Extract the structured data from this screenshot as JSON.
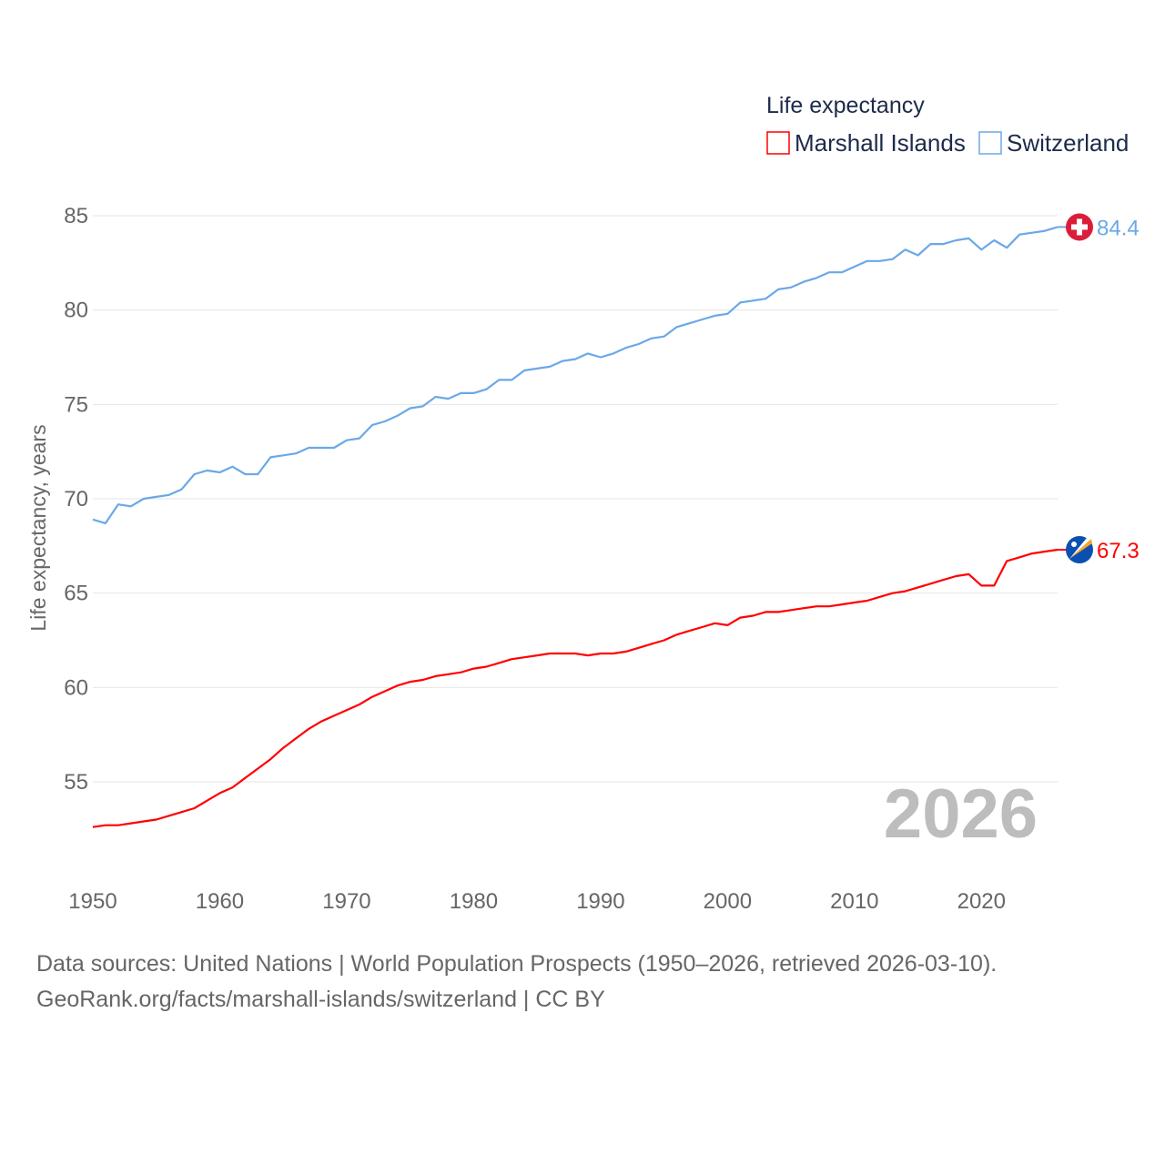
{
  "chart_data": {
    "type": "line",
    "title": "Life expectancy",
    "ylabel": "Life expectancy, years",
    "xlabel": "",
    "ylim": [
      52,
      85.5
    ],
    "xlim": [
      1950,
      2026
    ],
    "yticks": [
      55,
      60,
      65,
      70,
      75,
      80,
      85
    ],
    "xticks": [
      1950,
      1960,
      1970,
      1980,
      1990,
      2000,
      2010,
      2020
    ],
    "grid": true,
    "legend_placement": "top-right",
    "year_label": "2026",
    "x": [
      1950,
      1951,
      1952,
      1953,
      1954,
      1955,
      1956,
      1957,
      1958,
      1959,
      1960,
      1961,
      1962,
      1963,
      1964,
      1965,
      1966,
      1967,
      1968,
      1969,
      1970,
      1971,
      1972,
      1973,
      1974,
      1975,
      1976,
      1977,
      1978,
      1979,
      1980,
      1981,
      1982,
      1983,
      1984,
      1985,
      1986,
      1987,
      1988,
      1989,
      1990,
      1991,
      1992,
      1993,
      1994,
      1995,
      1996,
      1997,
      1998,
      1999,
      2000,
      2001,
      2002,
      2003,
      2004,
      2005,
      2006,
      2007,
      2008,
      2009,
      2010,
      2011,
      2012,
      2013,
      2014,
      2015,
      2016,
      2017,
      2018,
      2019,
      2020,
      2021,
      2022,
      2023,
      2024,
      2025,
      2026
    ],
    "series": [
      {
        "name": "Marshall Islands",
        "color": "#ff0000",
        "end_label": "67.3",
        "flag": "marshall-islands-flag",
        "values": [
          52.6,
          52.7,
          52.7,
          52.8,
          52.9,
          53.0,
          53.2,
          53.4,
          53.6,
          54.0,
          54.4,
          54.7,
          55.2,
          55.7,
          56.2,
          56.8,
          57.3,
          57.8,
          58.2,
          58.5,
          58.8,
          59.1,
          59.5,
          59.8,
          60.1,
          60.3,
          60.4,
          60.6,
          60.7,
          60.8,
          61.0,
          61.1,
          61.3,
          61.5,
          61.6,
          61.7,
          61.8,
          61.8,
          61.8,
          61.7,
          61.8,
          61.8,
          61.9,
          62.1,
          62.3,
          62.5,
          62.8,
          63.0,
          63.2,
          63.4,
          63.3,
          63.7,
          63.8,
          64.0,
          64.0,
          64.1,
          64.2,
          64.3,
          64.3,
          64.4,
          64.5,
          64.6,
          64.8,
          65.0,
          65.1,
          65.3,
          65.5,
          65.7,
          65.9,
          66.0,
          65.4,
          65.4,
          66.7,
          66.9,
          67.1,
          67.2,
          67.3
        ]
      },
      {
        "name": "Switzerland",
        "color": "#6aa8e8",
        "end_label": "84.4",
        "flag": "switzerland-flag",
        "values": [
          68.9,
          68.7,
          69.7,
          69.6,
          70.0,
          70.1,
          70.2,
          70.5,
          71.3,
          71.5,
          71.4,
          71.7,
          71.3,
          71.3,
          72.2,
          72.3,
          72.4,
          72.7,
          72.7,
          72.7,
          73.1,
          73.2,
          73.9,
          74.1,
          74.4,
          74.8,
          74.9,
          75.4,
          75.3,
          75.6,
          75.6,
          75.8,
          76.3,
          76.3,
          76.8,
          76.9,
          77.0,
          77.3,
          77.4,
          77.7,
          77.5,
          77.7,
          78.0,
          78.2,
          78.5,
          78.6,
          79.1,
          79.3,
          79.5,
          79.7,
          79.8,
          80.4,
          80.5,
          80.6,
          81.1,
          81.2,
          81.5,
          81.7,
          82.0,
          82.0,
          82.3,
          82.6,
          82.6,
          82.7,
          83.2,
          82.9,
          83.5,
          83.5,
          83.7,
          83.8,
          83.2,
          83.7,
          83.3,
          84.0,
          84.1,
          84.2,
          84.4
        ]
      }
    ]
  },
  "footer": {
    "line1": "Data sources: United Nations | World Population Prospects (1950–2026, retrieved 2026-03-10).",
    "line2": "GeoRank.org/facts/marshall-islands/switzerland | CC BY"
  }
}
